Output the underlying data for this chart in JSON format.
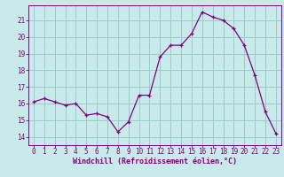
{
  "x": [
    0,
    1,
    2,
    3,
    4,
    5,
    6,
    7,
    8,
    9,
    10,
    11,
    12,
    13,
    14,
    15,
    16,
    17,
    18,
    19,
    20,
    21,
    22,
    23
  ],
  "y": [
    16.1,
    16.3,
    16.1,
    15.9,
    16.0,
    15.3,
    15.4,
    15.2,
    14.3,
    14.9,
    16.5,
    16.5,
    18.8,
    19.5,
    19.5,
    20.2,
    21.5,
    21.2,
    21.0,
    20.5,
    19.5,
    17.7,
    15.5,
    14.2
  ],
  "line_color": "#800080",
  "marker": "+",
  "bg_color": "#c8eaea",
  "grid_color": "#99cccc",
  "xlabel": "Windchill (Refroidissement éolien,°C)",
  "xlabel_color": "#800080",
  "tick_color": "#800080",
  "ylim": [
    13.5,
    21.9
  ],
  "xlim": [
    -0.5,
    23.5
  ],
  "yticks": [
    14,
    15,
    16,
    17,
    18,
    19,
    20,
    21
  ],
  "xticks": [
    0,
    1,
    2,
    3,
    4,
    5,
    6,
    7,
    8,
    9,
    10,
    11,
    12,
    13,
    14,
    15,
    16,
    17,
    18,
    19,
    20,
    21,
    22,
    23
  ],
  "spine_color": "#800080",
  "axis_bg": "#c8eaea"
}
